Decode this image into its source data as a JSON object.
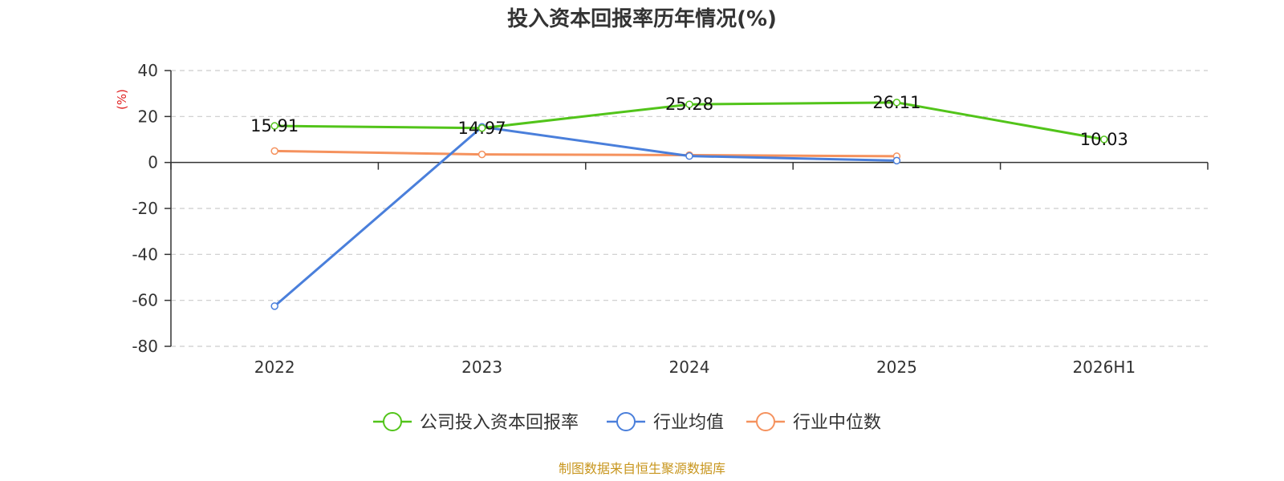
{
  "colors": {
    "grid": "#cccccc",
    "axis": "#333333",
    "unit": "#e02020",
    "source": "#c8961e"
  },
  "chart_data": {
    "type": "line",
    "title": "投入资本回报率历年情况(%)",
    "ylabel": "(%)",
    "ylim": [
      -80,
      40
    ],
    "yticks": [
      40,
      20,
      0,
      -20,
      -40,
      -60,
      -80
    ],
    "categories": [
      "2022",
      "2023",
      "2024",
      "2025",
      "2026H1"
    ],
    "grid": true,
    "legend_position": "bottom",
    "series": [
      {
        "name": "公司投入资本回报率",
        "color": "#52c41a",
        "values": [
          15.91,
          14.97,
          25.28,
          26.11,
          10.03
        ],
        "labels": [
          "15.91",
          "14.97",
          "25.28",
          "26.11",
          "10.03"
        ]
      },
      {
        "name": "行业均值",
        "color": "#4a7fdb",
        "values": [
          -62.5,
          15.5,
          2.8,
          0.8,
          null
        ]
      },
      {
        "name": "行业中位数",
        "color": "#f5925e",
        "values": [
          5.0,
          3.5,
          3.2,
          2.7,
          null
        ]
      }
    ]
  },
  "source": "制图数据来自恒生聚源数据库"
}
